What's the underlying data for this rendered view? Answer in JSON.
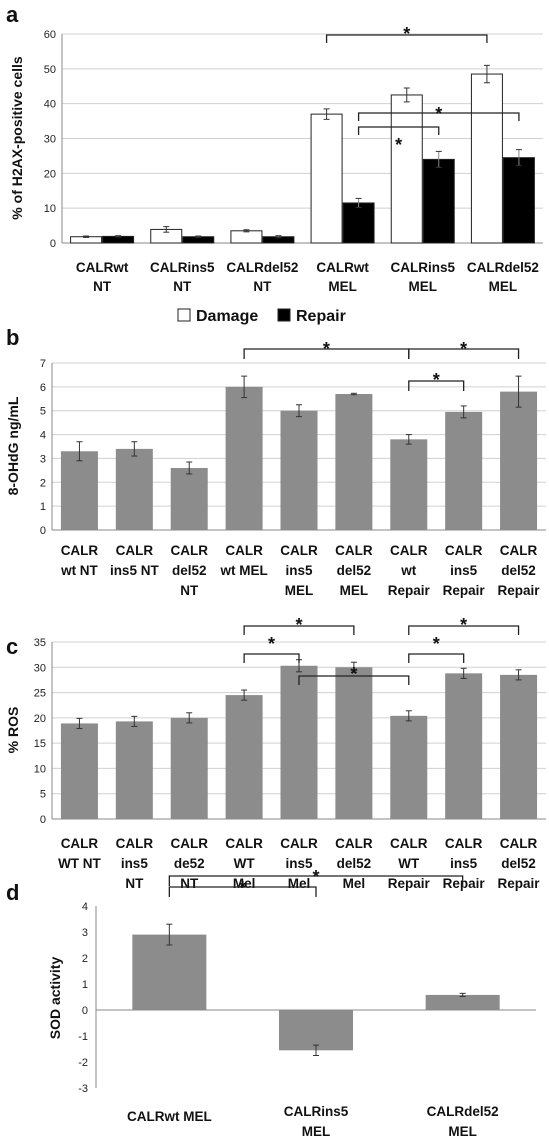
{
  "chart_data": [
    {
      "panel": "a",
      "type": "bar",
      "ylabel": "% of H2AX-positive cells",
      "ylim": [
        0,
        60
      ],
      "yticks": [
        0,
        10,
        20,
        30,
        40,
        50,
        60
      ],
      "grid": true,
      "legend_position": "bottom",
      "categories": [
        [
          "CALRwt",
          "NT"
        ],
        [
          "CALRins5",
          "NT"
        ],
        [
          "CALRdel52",
          "NT"
        ],
        [
          "CALRwt",
          "MEL"
        ],
        [
          "CALRins5",
          "MEL"
        ],
        [
          "CALRdel52",
          "MEL"
        ]
      ],
      "series": [
        {
          "name": "Damage",
          "color": "#ffffff",
          "values": [
            1.8,
            3.9,
            3.5,
            37.0,
            42.5,
            48.5
          ],
          "errors": [
            0.2,
            0.8,
            0.3,
            1.5,
            2.0,
            2.5
          ]
        },
        {
          "name": "Repair",
          "color": "#000000",
          "values": [
            1.9,
            1.8,
            1.8,
            11.5,
            24.0,
            24.5
          ],
          "errors": [
            0.2,
            0.2,
            0.3,
            1.3,
            2.3,
            2.3
          ]
        }
      ],
      "significance": [
        {
          "from": [
            3,
            0
          ],
          "to": [
            5,
            0
          ],
          "label": "*"
        },
        {
          "from": [
            3,
            1
          ],
          "to": [
            5,
            1
          ],
          "label": "*"
        },
        {
          "from": [
            3,
            1
          ],
          "to": [
            4,
            1
          ],
          "label": "*"
        }
      ]
    },
    {
      "panel": "b",
      "type": "bar",
      "ylabel": "8-OHdG ng/mL",
      "ylim": [
        0,
        7
      ],
      "yticks": [
        0,
        1,
        2,
        3,
        4,
        5,
        6,
        7
      ],
      "grid": true,
      "color": "#8c8c8c",
      "categories": [
        [
          "CALR",
          "wt NT"
        ],
        [
          "CALR",
          "ins5 NT"
        ],
        [
          "CALR",
          "del52",
          "NT"
        ],
        [
          "CALR",
          "wt MEL"
        ],
        [
          "CALR",
          "ins5",
          "MEL"
        ],
        [
          "CALR",
          "del52",
          "MEL"
        ],
        [
          "CALR",
          "wt",
          "Repair"
        ],
        [
          "CALR",
          "ins5",
          "Repair"
        ],
        [
          "CALR",
          "del52",
          "Repair"
        ]
      ],
      "values": [
        3.3,
        3.4,
        2.6,
        6.0,
        5.0,
        5.7,
        3.8,
        4.95,
        5.8
      ],
      "errors": [
        0.4,
        0.3,
        0.25,
        0.45,
        0.25,
        0.03,
        0.2,
        0.25,
        0.65
      ],
      "significance": [
        {
          "from": 3,
          "to": 6,
          "label": "*"
        },
        {
          "from": 6,
          "to": 7,
          "label": "*"
        },
        {
          "from": 6,
          "to": 8,
          "label": "*"
        }
      ]
    },
    {
      "panel": "c",
      "type": "bar",
      "ylabel": "% ROS",
      "ylim": [
        0,
        35
      ],
      "yticks": [
        0,
        5,
        10,
        15,
        20,
        25,
        30,
        35
      ],
      "grid": true,
      "color": "#8c8c8c",
      "categories": [
        [
          "CALR",
          "WT NT"
        ],
        [
          "CALR",
          "ins5",
          "NT"
        ],
        [
          "CALR",
          "de52",
          "NT"
        ],
        [
          "CALR",
          "WT",
          "Mel"
        ],
        [
          "CALR",
          "ins5",
          "Mel"
        ],
        [
          "CALR",
          "del52",
          "Mel"
        ],
        [
          "CALR",
          "WT",
          "Repair"
        ],
        [
          "CALR",
          "ins5",
          "Repair"
        ],
        [
          "CALR",
          "del52",
          "Repair"
        ]
      ],
      "values": [
        18.9,
        19.3,
        20.0,
        24.5,
        30.3,
        30.0,
        20.4,
        28.8,
        28.5
      ],
      "errors": [
        1.0,
        1.0,
        1.0,
        1.0,
        1.2,
        1.0,
        1.0,
        1.0,
        1.0
      ],
      "significance": [
        {
          "from": 3,
          "to": 4,
          "label": "*"
        },
        {
          "from": 3,
          "to": 5,
          "label": "*"
        },
        {
          "from": 4,
          "to": 6,
          "label": "*"
        },
        {
          "from": 6,
          "to": 7,
          "label": "*"
        },
        {
          "from": 6,
          "to": 8,
          "label": "*"
        }
      ]
    },
    {
      "panel": "d",
      "type": "bar",
      "ylabel": "SOD activity",
      "ylim": [
        -3,
        4
      ],
      "yticks": [
        -3,
        -2,
        -1,
        0,
        1,
        2,
        3,
        4
      ],
      "grid": false,
      "color": "#8c8c8c",
      "categories": [
        [
          "CALRwt MEL"
        ],
        [
          "CALRins5",
          "MEL"
        ],
        [
          "CALRdel52",
          "MEL"
        ]
      ],
      "values": [
        2.9,
        -1.55,
        0.58
      ],
      "errors": [
        0.4,
        0.2,
        0.06
      ],
      "significance": [
        {
          "from": 0,
          "to": 1,
          "label": "*"
        },
        {
          "from": 0,
          "to": 2,
          "label": "*"
        }
      ]
    }
  ]
}
